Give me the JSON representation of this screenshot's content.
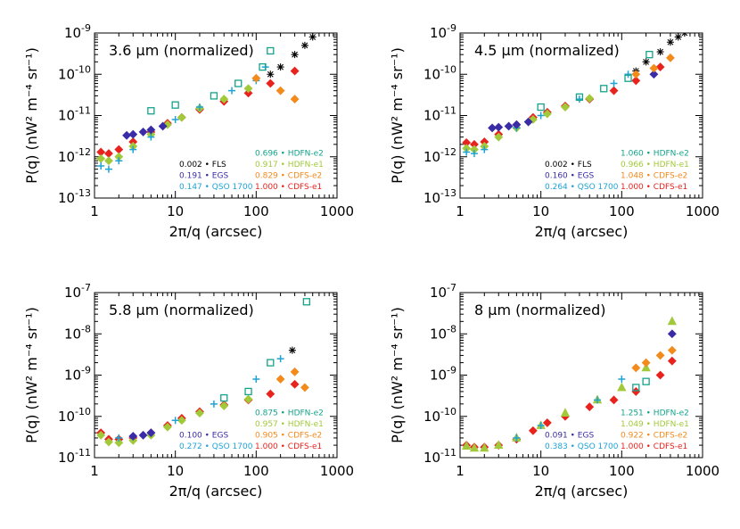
{
  "chart_data": [
    {
      "type": "scatter",
      "title": "3.6 μm (normalized)",
      "xlabel": "2π/q (arcsec)",
      "ylabel": "P(q) (nW² m⁻⁴ sr⁻¹)",
      "xlim": [
        1,
        1000
      ],
      "ylim": [
        1e-13,
        1e-09
      ],
      "xticks": [
        1,
        10,
        100,
        1000
      ],
      "xticklabels": [
        "1",
        "10",
        "100",
        "1000"
      ],
      "yticks": [
        1e-13,
        1e-12,
        1e-11,
        1e-10,
        1e-09
      ],
      "yticklabels": [
        {
          "base": "10",
          "exp": "-13"
        },
        {
          "base": "10",
          "exp": "-12"
        },
        {
          "base": "10",
          "exp": "-11"
        },
        {
          "base": "10",
          "exp": "-10"
        },
        {
          "base": "10",
          "exp": "-9"
        }
      ],
      "legend": [
        {
          "value": "0.002",
          "name": "FLS",
          "color": "#000000"
        },
        {
          "value": "0.191",
          "name": "EGS",
          "color": "#3a2ca6"
        },
        {
          "value": "0.147",
          "name": "QSO 1700",
          "color": "#1fa3d6"
        },
        {
          "value": "0.696",
          "name": "HDFN-e2",
          "color": "#14a38a"
        },
        {
          "value": "0.917",
          "name": "HDFN-e1",
          "color": "#a2c93a"
        },
        {
          "value": "0.829",
          "name": "CDFS-e2",
          "color": "#f28a1c"
        },
        {
          "value": "1.000",
          "name": "CDFS-e1",
          "color": "#e8231e"
        }
      ],
      "series": [
        {
          "name": "CDFS-e1",
          "color": "#e8231e",
          "marker": "diamond",
          "x": [
            1.2,
            1.5,
            2,
            3,
            5,
            8,
            12,
            20,
            40,
            80,
            150,
            300
          ],
          "y": [
            1.3e-12,
            1.2e-12,
            1.5e-12,
            2.3e-12,
            4e-12,
            6.5e-12,
            9e-12,
            1.4e-11,
            2.2e-11,
            3.5e-11,
            6e-11,
            1.2e-10
          ]
        },
        {
          "name": "HDFN-e1",
          "color": "#a2c93a",
          "marker": "diamond",
          "x": [
            1.2,
            1.5,
            2,
            3,
            5,
            8,
            12,
            20,
            40,
            80
          ],
          "y": [
            9e-13,
            8e-13,
            1e-12,
            1.8e-12,
            3.5e-12,
            6e-12,
            9e-12,
            1.5e-11,
            2.5e-11,
            4.5e-11
          ]
        },
        {
          "name": "QSO 1700",
          "color": "#1fa3d6",
          "marker": "plus",
          "x": [
            1.2,
            1.5,
            2,
            3,
            5,
            10,
            20,
            50,
            100,
            130
          ],
          "y": [
            6e-13,
            5e-13,
            8e-13,
            1.5e-12,
            3e-12,
            8e-12,
            1.6e-11,
            4e-11,
            7e-11,
            1.5e-10
          ]
        },
        {
          "name": "EGS",
          "color": "#3a2ca6",
          "marker": "diamond",
          "x": [
            2.5,
            3,
            4,
            5,
            7
          ],
          "y": [
            3.3e-12,
            3.5e-12,
            4e-12,
            4.5e-12,
            5.5e-12
          ]
        },
        {
          "name": "HDFN-e2",
          "color": "#14a38a",
          "marker": "square",
          "x": [
            5,
            10,
            30,
            60,
            120,
            150
          ],
          "y": [
            1.3e-11,
            1.8e-11,
            3e-11,
            6e-11,
            1.5e-10,
            3.7e-10
          ]
        },
        {
          "name": "FLS",
          "color": "#000000",
          "marker": "star",
          "x": [
            150,
            200,
            300,
            400,
            500
          ],
          "y": [
            1e-10,
            1.5e-10,
            3e-10,
            5e-10,
            8e-10
          ]
        },
        {
          "name": "CDFS-e2",
          "color": "#f28a1c",
          "marker": "diamond",
          "x": [
            100,
            200,
            300
          ],
          "y": [
            8e-11,
            4e-11,
            2.5e-11
          ]
        }
      ]
    },
    {
      "type": "scatter",
      "title": "4.5 μm (normalized)",
      "xlabel": "2π/q (arcsec)",
      "ylabel": "P(q) (nW² m⁻⁴ sr⁻¹)",
      "xlim": [
        1,
        1000
      ],
      "ylim": [
        1e-13,
        1e-09
      ],
      "xticks": [
        1,
        10,
        100,
        1000
      ],
      "xticklabels": [
        "1",
        "10",
        "100",
        "1000"
      ],
      "yticks": [
        1e-13,
        1e-12,
        1e-11,
        1e-10,
        1e-09
      ],
      "yticklabels": [
        {
          "base": "10",
          "exp": "-13"
        },
        {
          "base": "10",
          "exp": "-12"
        },
        {
          "base": "10",
          "exp": "-11"
        },
        {
          "base": "10",
          "exp": "-10"
        },
        {
          "base": "10",
          "exp": "-9"
        }
      ],
      "legend": [
        {
          "value": "0.002",
          "name": "FLS",
          "color": "#000000"
        },
        {
          "value": "0.160",
          "name": "EGS",
          "color": "#3a2ca6"
        },
        {
          "value": "0.264",
          "name": "QSO 1700",
          "color": "#1fa3d6"
        },
        {
          "value": "1.060",
          "name": "HDFN-e2",
          "color": "#14a38a"
        },
        {
          "value": "0.966",
          "name": "HDFN-e1",
          "color": "#a2c93a"
        },
        {
          "value": "1.048",
          "name": "CDFS-e2",
          "color": "#f28a1c"
        },
        {
          "value": "1.000",
          "name": "CDFS-e1",
          "color": "#e8231e"
        }
      ],
      "series": [
        {
          "name": "CDFS-e1",
          "color": "#e8231e",
          "marker": "diamond",
          "x": [
            1.2,
            1.5,
            2,
            3,
            5,
            8,
            12,
            20,
            40,
            80,
            150,
            300
          ],
          "y": [
            2.2e-12,
            2e-12,
            2.3e-12,
            3.5e-12,
            6e-12,
            9e-12,
            1.2e-11,
            1.7e-11,
            2.5e-11,
            4e-11,
            7e-11,
            1.5e-10
          ]
        },
        {
          "name": "HDFN-e1",
          "color": "#a2c93a",
          "marker": "diamond",
          "x": [
            1.2,
            1.5,
            2,
            3,
            5,
            8,
            12,
            20,
            40
          ],
          "y": [
            1.6e-12,
            1.5e-12,
            1.8e-12,
            3e-12,
            5e-12,
            8e-12,
            1.1e-11,
            1.6e-11,
            2.6e-11
          ]
        },
        {
          "name": "QSO 1700",
          "color": "#1fa3d6",
          "marker": "plus",
          "x": [
            1.2,
            1.5,
            2,
            5,
            10,
            30,
            80,
            120
          ],
          "y": [
            1.3e-12,
            1.2e-12,
            1.5e-12,
            5e-12,
            1e-11,
            2.5e-11,
            6e-11,
            1e-10
          ]
        },
        {
          "name": "EGS",
          "color": "#3a2ca6",
          "marker": "diamond",
          "x": [
            2.5,
            3,
            4,
            5,
            7,
            250
          ],
          "y": [
            5e-12,
            5.2e-12,
            5.5e-12,
            6e-12,
            7e-12,
            1e-10
          ]
        },
        {
          "name": "HDFN-e2",
          "color": "#14a38a",
          "marker": "square",
          "x": [
            10,
            30,
            60,
            120,
            220
          ],
          "y": [
            1.6e-11,
            2.8e-11,
            4.5e-11,
            8e-11,
            3e-10
          ]
        },
        {
          "name": "FLS",
          "color": "#000000",
          "marker": "star",
          "x": [
            150,
            200,
            300,
            400,
            500,
            600
          ],
          "y": [
            1.2e-10,
            2e-10,
            3.5e-10,
            6e-10,
            8e-10,
            1e-09
          ]
        },
        {
          "name": "CDFS-e2",
          "color": "#f28a1c",
          "marker": "diamond",
          "x": [
            150,
            250,
            400
          ],
          "y": [
            1e-10,
            1.4e-10,
            2.5e-10
          ]
        }
      ]
    },
    {
      "type": "scatter",
      "title": "5.8 μm (normalized)",
      "xlabel": "2π/q (arcsec)",
      "ylabel": "P(q) (nW² m⁻⁴ sr⁻¹)",
      "xlim": [
        1,
        1000
      ],
      "ylim": [
        1e-11,
        1e-07
      ],
      "xticks": [
        1,
        10,
        100,
        1000
      ],
      "xticklabels": [
        "1",
        "10",
        "100",
        "1000"
      ],
      "yticks": [
        1e-11,
        1e-10,
        1e-09,
        1e-08,
        1e-07
      ],
      "yticklabels": [
        {
          "base": "10",
          "exp": "-11"
        },
        {
          "base": "10",
          "exp": "-10"
        },
        {
          "base": "10",
          "exp": "-9"
        },
        {
          "base": "10",
          "exp": "-8"
        },
        {
          "base": "10",
          "exp": "-7"
        }
      ],
      "legend": [
        {
          "value": "0.100",
          "name": "EGS",
          "color": "#3a2ca6"
        },
        {
          "value": "0.272",
          "name": "QSO 1700",
          "color": "#1fa3d6"
        },
        {
          "value": "0.875",
          "name": "HDFN-e2",
          "color": "#14a38a"
        },
        {
          "value": "0.957",
          "name": "HDFN-e1",
          "color": "#a2c93a"
        },
        {
          "value": "0.905",
          "name": "CDFS-e2",
          "color": "#f28a1c"
        },
        {
          "value": "1.000",
          "name": "CDFS-e1",
          "color": "#e8231e"
        }
      ],
      "series": [
        {
          "name": "CDFS-e1",
          "color": "#e8231e",
          "marker": "diamond",
          "x": [
            1.2,
            1.5,
            2,
            3,
            5,
            8,
            12,
            20,
            40,
            80,
            150,
            300
          ],
          "y": [
            4e-11,
            2.8e-11,
            2.8e-11,
            3e-11,
            4e-11,
            6e-11,
            9e-11,
            1.3e-10,
            1.9e-10,
            2.5e-10,
            3.5e-10,
            6e-10
          ]
        },
        {
          "name": "HDFN-e1",
          "color": "#a2c93a",
          "marker": "diamond",
          "x": [
            1.2,
            1.5,
            2,
            3,
            5,
            8,
            12,
            20,
            40,
            80
          ],
          "y": [
            3.5e-11,
            2.4e-11,
            2.3e-11,
            2.6e-11,
            3.5e-11,
            5.5e-11,
            8e-11,
            1.2e-10,
            1.8e-10,
            2.6e-10
          ]
        },
        {
          "name": "QSO 1700",
          "color": "#1fa3d6",
          "marker": "plus",
          "x": [
            2,
            5,
            10,
            30,
            100,
            200
          ],
          "y": [
            3e-11,
            4e-11,
            8e-11,
            2e-10,
            8e-10,
            2.5e-09
          ]
        },
        {
          "name": "EGS",
          "color": "#3a2ca6",
          "marker": "diamond",
          "x": [
            3,
            4,
            5
          ],
          "y": [
            3.3e-11,
            3.5e-11,
            4e-11
          ]
        },
        {
          "name": "HDFN-e2",
          "color": "#14a38a",
          "marker": "square",
          "x": [
            40,
            80,
            150,
            420
          ],
          "y": [
            2.8e-10,
            4e-10,
            2e-09,
            6e-08
          ]
        },
        {
          "name": "CDFS-e2",
          "color": "#f28a1c",
          "marker": "diamond",
          "x": [
            200,
            300,
            400
          ],
          "y": [
            8e-10,
            1.2e-09,
            5e-10
          ]
        },
        {
          "name": "FLS",
          "color": "#000000",
          "marker": "star",
          "x": [
            280
          ],
          "y": [
            4e-09
          ]
        }
      ]
    },
    {
      "type": "scatter",
      "title": "8 μm (normalized)",
      "xlabel": "2π/q (arcsec)",
      "ylabel": "P(q) (nW² m⁻⁴ sr⁻¹)",
      "xlim": [
        1,
        1000
      ],
      "ylim": [
        1e-11,
        1e-07
      ],
      "xticks": [
        1,
        10,
        100,
        1000
      ],
      "xticklabels": [
        "1",
        "10",
        "100",
        "1000"
      ],
      "yticks": [
        1e-11,
        1e-10,
        1e-09,
        1e-08,
        1e-07
      ],
      "yticklabels": [
        {
          "base": "10",
          "exp": "-11"
        },
        {
          "base": "10",
          "exp": "-10"
        },
        {
          "base": "10",
          "exp": "-9"
        },
        {
          "base": "10",
          "exp": "-8"
        },
        {
          "base": "10",
          "exp": "-7"
        }
      ],
      "legend": [
        {
          "value": "0.091",
          "name": "EGS",
          "color": "#3a2ca6"
        },
        {
          "value": "0.383",
          "name": "QSO 1700",
          "color": "#1fa3d6"
        },
        {
          "value": "1.251",
          "name": "HDFN-e2",
          "color": "#14a38a"
        },
        {
          "value": "1.049",
          "name": "HDFN-e1",
          "color": "#a2c93a"
        },
        {
          "value": "0.922",
          "name": "CDFS-e2",
          "color": "#f28a1c"
        },
        {
          "value": "1.000",
          "name": "CDFS-e1",
          "color": "#e8231e"
        }
      ],
      "series": [
        {
          "name": "CDFS-e1",
          "color": "#e8231e",
          "marker": "diamond",
          "x": [
            1.2,
            1.5,
            2,
            3,
            5,
            8,
            12,
            20,
            40,
            80,
            150,
            300,
            420
          ],
          "y": [
            2e-11,
            1.8e-11,
            1.8e-11,
            2e-11,
            2.8e-11,
            4.5e-11,
            7e-11,
            1e-10,
            1.7e-10,
            2.5e-10,
            4e-10,
            1e-09,
            2.2e-09
          ]
        },
        {
          "name": "HDFN-e1",
          "color": "#a2c93a",
          "marker": "triangle",
          "x": [
            1.2,
            1.5,
            2,
            3,
            5,
            10,
            20,
            50,
            100,
            200,
            420
          ],
          "y": [
            1.9e-11,
            1.7e-11,
            1.7e-11,
            2e-11,
            3e-11,
            6e-11,
            1.2e-10,
            2.5e-10,
            5e-10,
            1.5e-09,
            2e-08
          ]
        },
        {
          "name": "QSO 1700",
          "color": "#1fa3d6",
          "marker": "plus",
          "x": [
            5,
            10,
            50,
            100
          ],
          "y": [
            3e-11,
            6e-11,
            2.5e-10,
            8e-10
          ]
        },
        {
          "name": "EGS",
          "color": "#3a2ca6",
          "marker": "diamond",
          "x": [
            420
          ],
          "y": [
            1e-08
          ]
        },
        {
          "name": "HDFN-e2",
          "color": "#14a38a",
          "marker": "square",
          "x": [
            150,
            200
          ],
          "y": [
            5e-10,
            7e-10
          ]
        },
        {
          "name": "CDFS-e2",
          "color": "#f28a1c",
          "marker": "diamond",
          "x": [
            150,
            200,
            300,
            420
          ],
          "y": [
            1.5e-09,
            2e-09,
            3e-09,
            4e-09
          ]
        }
      ]
    }
  ]
}
